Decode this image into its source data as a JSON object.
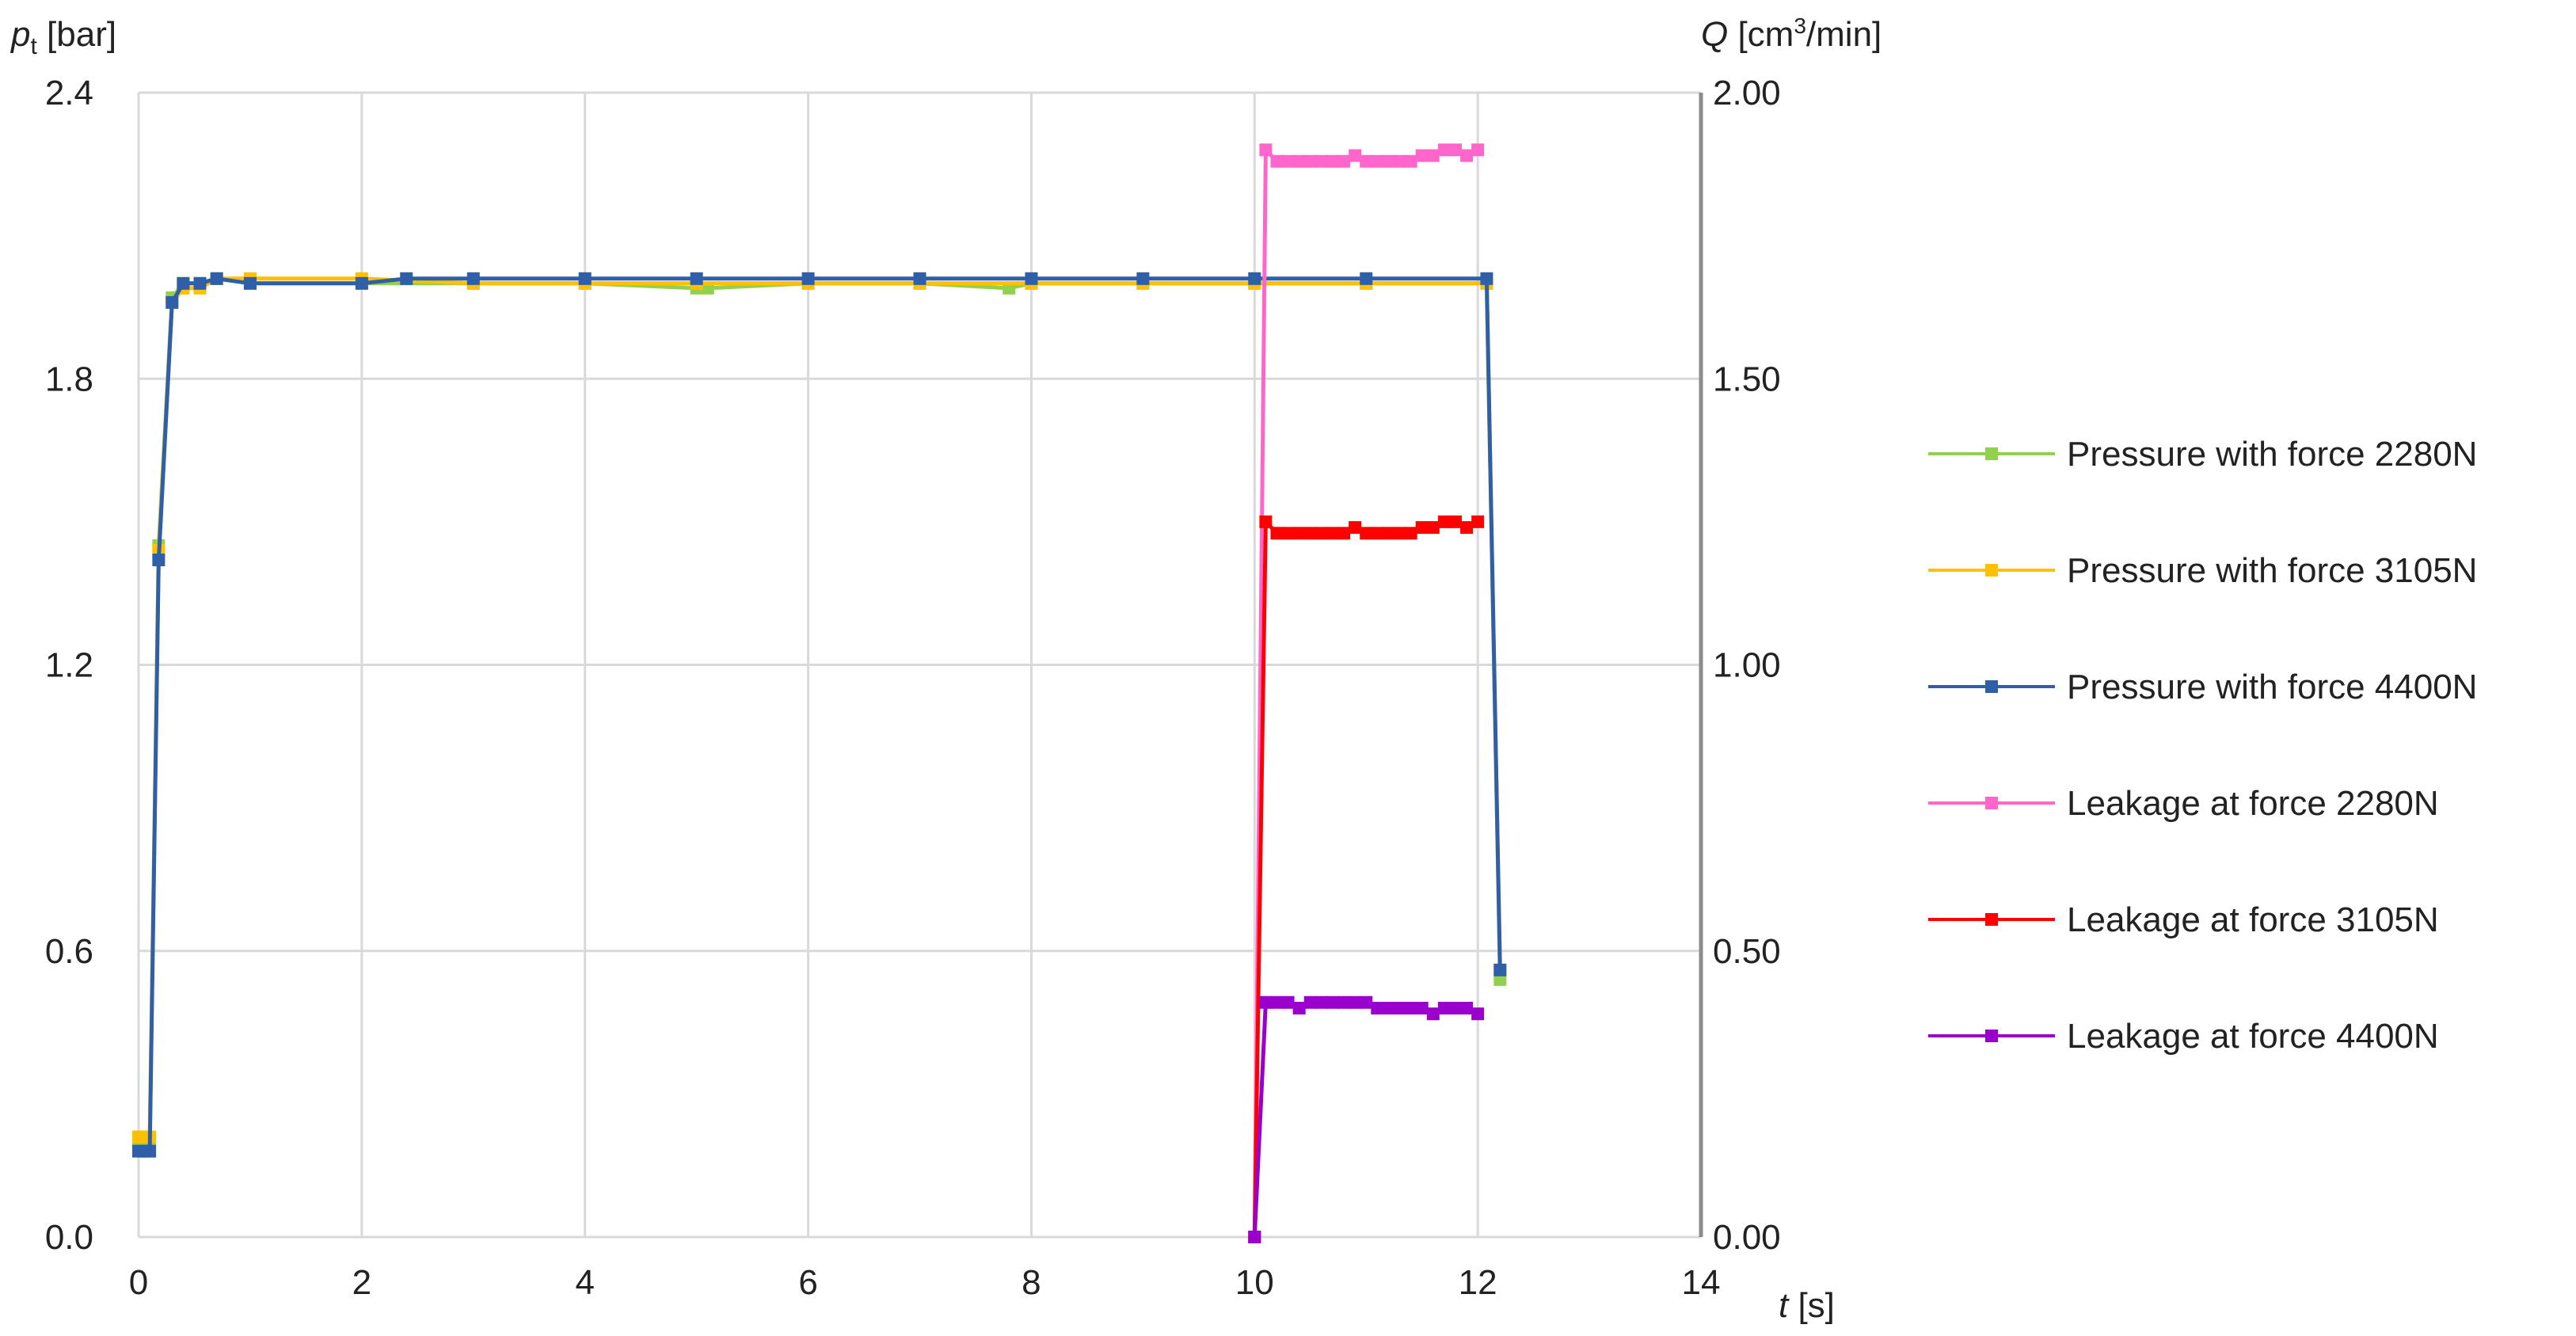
{
  "chart_data": {
    "type": "line",
    "y_left": {
      "label_symbol": "p",
      "label_sub": "t",
      "label_unit": " [bar]",
      "ticks": [
        "0.0",
        "0.6",
        "1.2",
        "1.8",
        "2.4"
      ],
      "range": [
        0,
        2.4
      ]
    },
    "y_right": {
      "label_symbol": "Q",
      "label_unit_pre": " [cm",
      "label_sup": "3",
      "label_unit_post": "/min]",
      "ticks": [
        "0.00",
        "0.50",
        "1.00",
        "1.50",
        "2.00"
      ],
      "range": [
        0,
        2.0
      ]
    },
    "x_axis": {
      "label_symbol": "t",
      "label_unit": " [s]",
      "ticks": [
        "0",
        "2",
        "4",
        "6",
        "8",
        "10",
        "12",
        "14"
      ],
      "range": [
        0,
        14
      ]
    },
    "grid": true,
    "legend_position": "right",
    "series": [
      {
        "name": "Pressure with force 2280N",
        "axis": "left",
        "color": "#92d050",
        "x": [
          0,
          0.05,
          0.1,
          0.18,
          0.3,
          0.4,
          0.55,
          0.7,
          1.0,
          2.0,
          3.0,
          4.0,
          5.0,
          5.1,
          6.0,
          7.0,
          7.8,
          8.0,
          9.0,
          10.0,
          11.0,
          12.08,
          12.2
        ],
        "y": [
          0.19,
          0.2,
          0.2,
          1.45,
          1.97,
          2.0,
          2.0,
          2.01,
          2.0,
          2.0,
          2.0,
          2.0,
          1.99,
          1.99,
          2.0,
          2.0,
          1.99,
          2.0,
          2.0,
          2.0,
          2.0,
          2.0,
          0.54
        ]
      },
      {
        "name": "Pressure with force 3105N",
        "axis": "left",
        "color": "#ffc000",
        "x": [
          0,
          0.05,
          0.1,
          0.18,
          0.3,
          0.4,
          0.55,
          0.7,
          1.0,
          2.0,
          3.0,
          4.0,
          5.0,
          6.0,
          7.0,
          8.0,
          9.0,
          10.0,
          11.0,
          12.08,
          12.2
        ],
        "y": [
          0.21,
          0.21,
          0.21,
          1.44,
          1.96,
          1.99,
          1.99,
          2.01,
          2.01,
          2.01,
          2.0,
          2.0,
          2.0,
          2.0,
          2.0,
          2.0,
          2.0,
          2.0,
          2.0,
          2.0,
          0.56
        ]
      },
      {
        "name": "Pressure with force 4400N",
        "axis": "left",
        "color": "#2e5fa8",
        "x": [
          0,
          0.05,
          0.1,
          0.18,
          0.3,
          0.4,
          0.55,
          0.7,
          1.0,
          2.0,
          2.4,
          3.0,
          4.0,
          5.0,
          6.0,
          7.0,
          8.0,
          9.0,
          10.0,
          11.0,
          12.08,
          12.2
        ],
        "y": [
          0.18,
          0.18,
          0.18,
          1.42,
          1.96,
          2.0,
          2.0,
          2.01,
          2.0,
          2.0,
          2.01,
          2.01,
          2.01,
          2.01,
          2.01,
          2.01,
          2.01,
          2.01,
          2.01,
          2.01,
          2.01,
          0.56
        ]
      },
      {
        "name": "Leakage at force 2280N",
        "axis": "right",
        "color": "#ff66cc",
        "x": [
          10.0,
          10.1,
          10.2,
          10.3,
          10.4,
          10.5,
          10.6,
          10.7,
          10.8,
          10.9,
          11.0,
          11.1,
          11.2,
          11.3,
          11.4,
          11.5,
          11.6,
          11.7,
          11.8,
          11.9,
          12.0
        ],
        "y": [
          0.0,
          1.9,
          1.88,
          1.88,
          1.88,
          1.88,
          1.88,
          1.88,
          1.88,
          1.89,
          1.88,
          1.88,
          1.88,
          1.88,
          1.88,
          1.89,
          1.89,
          1.9,
          1.9,
          1.89,
          1.9
        ]
      },
      {
        "name": "Leakage at force 3105N",
        "axis": "right",
        "color": "#ff0000",
        "x": [
          10.0,
          10.1,
          10.2,
          10.3,
          10.4,
          10.5,
          10.6,
          10.7,
          10.8,
          10.9,
          11.0,
          11.1,
          11.2,
          11.3,
          11.4,
          11.5,
          11.6,
          11.7,
          11.8,
          11.9,
          12.0
        ],
        "y": [
          0.0,
          1.25,
          1.23,
          1.23,
          1.23,
          1.23,
          1.23,
          1.23,
          1.23,
          1.24,
          1.23,
          1.23,
          1.23,
          1.23,
          1.23,
          1.24,
          1.24,
          1.25,
          1.25,
          1.24,
          1.25
        ]
      },
      {
        "name": "Leakage at force 4400N",
        "axis": "right",
        "color": "#9900cc",
        "x": [
          10.0,
          10.1,
          10.2,
          10.3,
          10.4,
          10.5,
          10.6,
          10.7,
          10.8,
          10.9,
          11.0,
          11.1,
          11.2,
          11.3,
          11.4,
          11.5,
          11.6,
          11.7,
          11.8,
          11.9,
          12.0
        ],
        "y": [
          0.0,
          0.41,
          0.41,
          0.41,
          0.4,
          0.41,
          0.41,
          0.41,
          0.41,
          0.41,
          0.41,
          0.4,
          0.4,
          0.4,
          0.4,
          0.4,
          0.39,
          0.4,
          0.4,
          0.4,
          0.39
        ]
      }
    ]
  }
}
